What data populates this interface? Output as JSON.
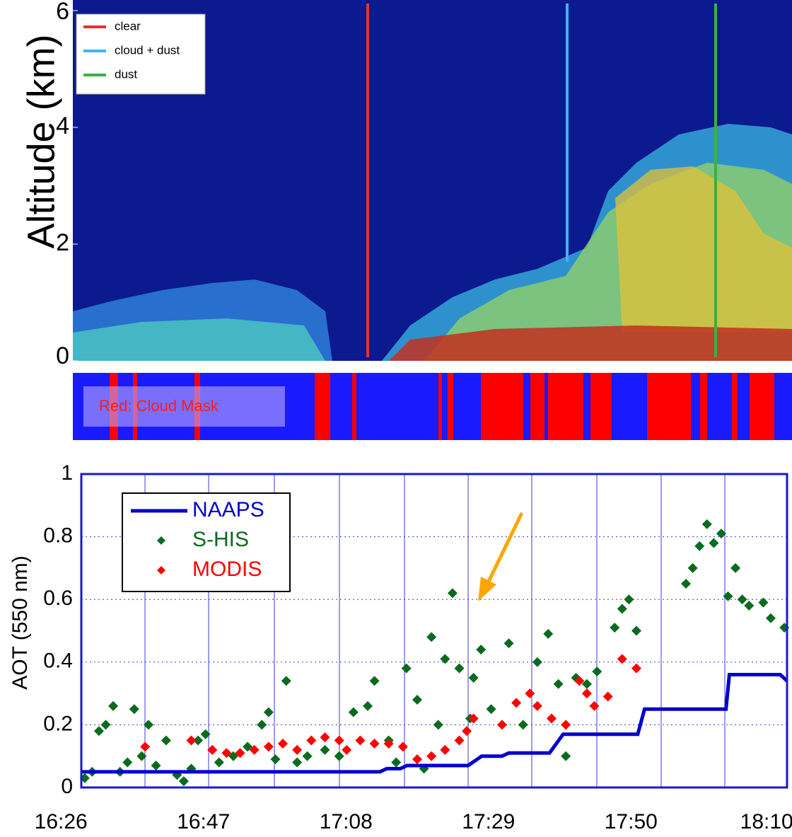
{
  "chart_data": [
    {
      "type": "image",
      "ylabel": "Altitude (km)",
      "ylim": [
        0,
        6
      ],
      "yticks": [
        0,
        2,
        4,
        6
      ],
      "series": [
        {
          "name": "clear",
          "color": "#e8322e"
        },
        {
          "name": "cloud + dust",
          "color": "#3fb6f0"
        },
        {
          "name": "dust",
          "color": "#3cb043"
        }
      ],
      "mask_label": "Red: Cloud Mask"
    },
    {
      "type": "scatter",
      "ylabel": "AOT (550 nm)",
      "xlim": [
        989,
        1093
      ],
      "ylim": [
        0,
        1
      ],
      "xticks": [
        {
          "value": 986,
          "label": "16:26"
        },
        {
          "value": 1007,
          "label": "16:47"
        },
        {
          "value": 1028,
          "label": "17:08"
        },
        {
          "value": 1049,
          "label": "17:29"
        },
        {
          "value": 1070,
          "label": "17:50"
        },
        {
          "value": 1090,
          "label": "18:10"
        }
      ],
      "yticks": [
        0,
        0.2,
        0.4,
        0.6,
        0.8,
        1
      ],
      "grid": true,
      "series": [
        {
          "name": "NAAPS",
          "color": "#0000cc",
          "kind": "line",
          "x": [
            989,
            1033,
            1034,
            1036,
            1037,
            1046,
            1048,
            1051,
            1052,
            1058,
            1060,
            1071,
            1072,
            1084,
            1084.5,
            1092,
            1093
          ],
          "values": [
            0.05,
            0.05,
            0.06,
            0.06,
            0.07,
            0.07,
            0.1,
            0.1,
            0.11,
            0.11,
            0.17,
            0.17,
            0.25,
            0.25,
            0.36,
            0.36,
            0.34
          ]
        },
        {
          "name": "S-HIS",
          "color": "#0a6b1e",
          "kind": "scatter",
          "x": [
            989.5,
            990.6,
            991.6,
            992.6,
            993.7,
            994.7,
            995.8,
            996.8,
            997.9,
            998.9,
            1000.0,
            1001.5,
            1003.1,
            1004.1,
            1005.2,
            1006.2,
            1007.3,
            1008.3,
            1009.3,
            1011.4,
            1013.5,
            1015.6,
            1016.6,
            1017.6,
            1019.2,
            1020.8,
            1022.3,
            1024.9,
            1027.0,
            1029.1,
            1031.2,
            1032.2,
            1034.3,
            1035.4,
            1036.9,
            1038.5,
            1039.5,
            1040.6,
            1041.6,
            1042.6,
            1043.7,
            1044.7,
            1046.3,
            1046.8,
            1047.9,
            1049.4,
            1052.0,
            1054.1,
            1056.2,
            1057.8,
            1059.3,
            1060.4,
            1061.9,
            1063.5,
            1065.0,
            1067.6,
            1068.7,
            1069.7,
            1070.8,
            1078.1,
            1079.1,
            1080.1,
            1081.2,
            1082.2,
            1083.3,
            1084.3,
            1085.4,
            1086.4,
            1087.4,
            1089.5,
            1090.6,
            1092.6
          ],
          "values": [
            0.03,
            0.05,
            0.18,
            0.2,
            0.26,
            0.05,
            0.08,
            0.25,
            0.1,
            0.2,
            0.07,
            0.15,
            0.04,
            0.02,
            0.06,
            0.15,
            0.17,
            0.12,
            0.08,
            0.1,
            0.13,
            0.2,
            0.24,
            0.09,
            0.34,
            0.08,
            0.1,
            0.12,
            0.1,
            0.24,
            0.26,
            0.34,
            0.15,
            0.08,
            0.38,
            0.28,
            0.06,
            0.48,
            0.2,
            0.41,
            0.62,
            0.38,
            0.22,
            0.35,
            0.44,
            0.25,
            0.46,
            0.2,
            0.4,
            0.49,
            0.33,
            0.1,
            0.35,
            0.33,
            0.37,
            0.51,
            0.57,
            0.6,
            0.5,
            0.65,
            0.7,
            0.77,
            0.84,
            0.78,
            0.81,
            0.61,
            0.7,
            0.6,
            0.58,
            0.59,
            0.54,
            0.51
          ]
        },
        {
          "name": "MODIS",
          "color": "#ff0000",
          "kind": "scatter",
          "x": [
            998.4,
            1005.2,
            1008.3,
            1010.4,
            1012.4,
            1014.5,
            1016.6,
            1018.7,
            1020.8,
            1022.9,
            1024.9,
            1027.0,
            1028.1,
            1030.1,
            1032.2,
            1034.3,
            1036.4,
            1038.5,
            1040.6,
            1042.6,
            1044.7,
            1045.8,
            1046.8,
            1051.0,
            1053.1,
            1055.1,
            1056.2,
            1058.3,
            1060.4,
            1062.4,
            1063.5,
            1064.6,
            1066.6,
            1068.7,
            1070.8
          ],
          "values": [
            0.13,
            0.15,
            0.12,
            0.11,
            0.11,
            0.12,
            0.13,
            0.14,
            0.12,
            0.15,
            0.16,
            0.15,
            0.12,
            0.15,
            0.14,
            0.14,
            0.13,
            0.09,
            0.1,
            0.12,
            0.15,
            0.18,
            0.22,
            0.2,
            0.27,
            0.3,
            0.26,
            0.22,
            0.2,
            0.34,
            0.3,
            0.26,
            0.29,
            0.41,
            0.38
          ]
        }
      ]
    }
  ]
}
